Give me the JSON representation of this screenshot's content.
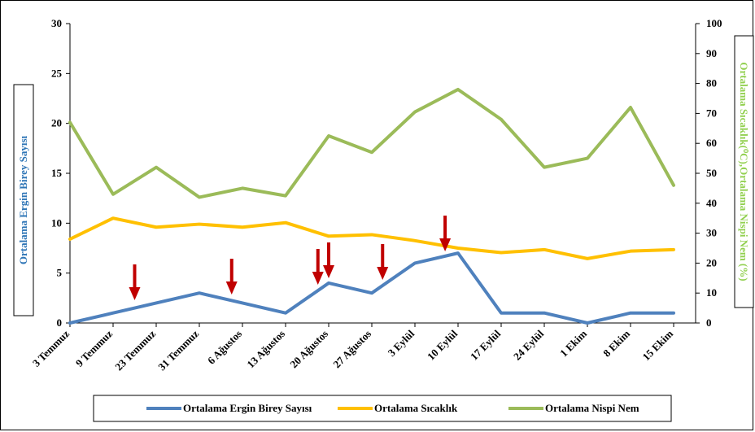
{
  "chart_data": {
    "type": "line",
    "categories": [
      "3 Temmuz",
      "9 Temmuz",
      "23 Temmuz",
      "31 Temmuz",
      "6 Ağustos",
      "13 Ağustos",
      "20 Ağustos",
      "27 Ağustos",
      "3 Eylül",
      "10 Eylül",
      "17 Eylül",
      "24 Eylül",
      "1 Ekim",
      "8 Ekim",
      "15 Ekim"
    ],
    "ylabel_left": "Ortalama Ergin Birey Sayısı",
    "ylabel_right": "Ortalama Sıcaklık(⁰C),Ortalama Nispi Nem (%)",
    "ylim_left": [
      0,
      30
    ],
    "yticks_left": [
      0,
      5,
      10,
      15,
      20,
      25,
      30
    ],
    "ylim_right": [
      0,
      100
    ],
    "yticks_right": [
      0,
      10,
      20,
      30,
      40,
      50,
      60,
      70,
      80,
      90,
      100
    ],
    "grid": false,
    "legend_position": "bottom",
    "series": [
      {
        "name": "Ortalama Ergin Birey Sayısı",
        "axis": "left",
        "color": "#4F81BD",
        "values": [
          0,
          1,
          2,
          3,
          2,
          1,
          4,
          3,
          6,
          7,
          1,
          1,
          0,
          1,
          1
        ]
      },
      {
        "name": "Ortalama Sıcaklık",
        "axis": "right",
        "color": "#FFC000",
        "values": [
          28,
          35,
          32,
          33,
          32,
          33.5,
          29,
          29.5,
          27.5,
          25,
          23.5,
          24.5,
          21.5,
          24,
          24.5
        ]
      },
      {
        "name": "Ortalama Nispi Nem",
        "axis": "right",
        "color": "#9BBB59",
        "values": [
          67,
          43,
          52,
          42,
          45,
          42.5,
          62.5,
          57,
          70.5,
          78,
          68,
          52,
          55,
          72,
          46
        ]
      }
    ],
    "annotations": {
      "type": "down-arrows",
      "color": "#C00000",
      "x_positions": [
        1.5,
        3.75,
        5.75,
        6.0,
        7.25,
        8.7
      ]
    }
  }
}
